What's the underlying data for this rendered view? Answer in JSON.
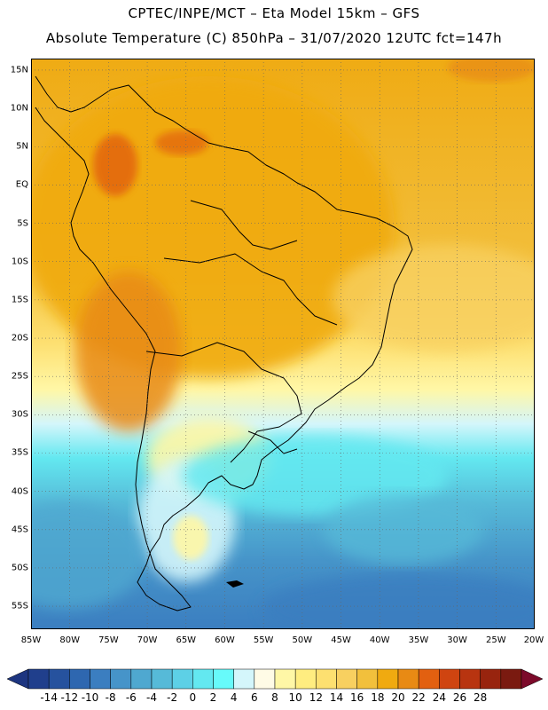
{
  "header": {
    "line1": "CPTEC/INPE/MCT –  Eta Model 15km – GFS",
    "line2": "Absolute Temperature (C) 850hPa – 31/07/2020 12UTC fct=147h"
  },
  "map": {
    "region": "South America",
    "lon_range": [
      -85,
      -20
    ],
    "lat_range": [
      -58,
      16.5
    ],
    "lat_ticks": [
      {
        "value": 15,
        "label": "15N"
      },
      {
        "value": 10,
        "label": "10N"
      },
      {
        "value": 5,
        "label": "5N"
      },
      {
        "value": 0,
        "label": "EQ"
      },
      {
        "value": -5,
        "label": "5S"
      },
      {
        "value": -10,
        "label": "10S"
      },
      {
        "value": -15,
        "label": "15S"
      },
      {
        "value": -20,
        "label": "20S"
      },
      {
        "value": -25,
        "label": "25S"
      },
      {
        "value": -30,
        "label": "30S"
      },
      {
        "value": -35,
        "label": "35S"
      },
      {
        "value": -40,
        "label": "40S"
      },
      {
        "value": -45,
        "label": "45S"
      },
      {
        "value": -50,
        "label": "50S"
      },
      {
        "value": -55,
        "label": "55S"
      }
    ],
    "lon_ticks": [
      {
        "value": -85,
        "label": "85W"
      },
      {
        "value": -80,
        "label": "80W"
      },
      {
        "value": -75,
        "label": "75W"
      },
      {
        "value": -70,
        "label": "70W"
      },
      {
        "value": -65,
        "label": "65W"
      },
      {
        "value": -60,
        "label": "60W"
      },
      {
        "value": -55,
        "label": "55W"
      },
      {
        "value": -50,
        "label": "50W"
      },
      {
        "value": -45,
        "label": "45W"
      },
      {
        "value": -40,
        "label": "40W"
      },
      {
        "value": -35,
        "label": "35W"
      },
      {
        "value": -30,
        "label": "30W"
      },
      {
        "value": -25,
        "label": "25W"
      },
      {
        "value": -20,
        "label": "20W"
      }
    ],
    "grid": true,
    "grid_style": "dotted"
  },
  "colorbar": {
    "labels": [
      "-14",
      "-12",
      "-10",
      "-8",
      "-6",
      "-4",
      "-2",
      "0",
      "2",
      "4",
      "6",
      "8",
      "10",
      "12",
      "14",
      "16",
      "18",
      "20",
      "22",
      "24",
      "26",
      "28"
    ],
    "colors": [
      "#203f8c",
      "#26529e",
      "#2e67b0",
      "#3b7ec0",
      "#4694c9",
      "#4fa8d0",
      "#56bad8",
      "#5dd0e6",
      "#63e8f0",
      "#67fafa",
      "#d4f6fb",
      "#fffbe6",
      "#fff7a6",
      "#ffed80",
      "#fde070",
      "#f8d060",
      "#f2c03c",
      "#f0aa10",
      "#e88a14",
      "#e26010",
      "#cf4410",
      "#b83410",
      "#98240e",
      "#7a1a10"
    ],
    "low_arrow_color": "#1d3580",
    "high_arrow_color": "#7c0a2a"
  }
}
